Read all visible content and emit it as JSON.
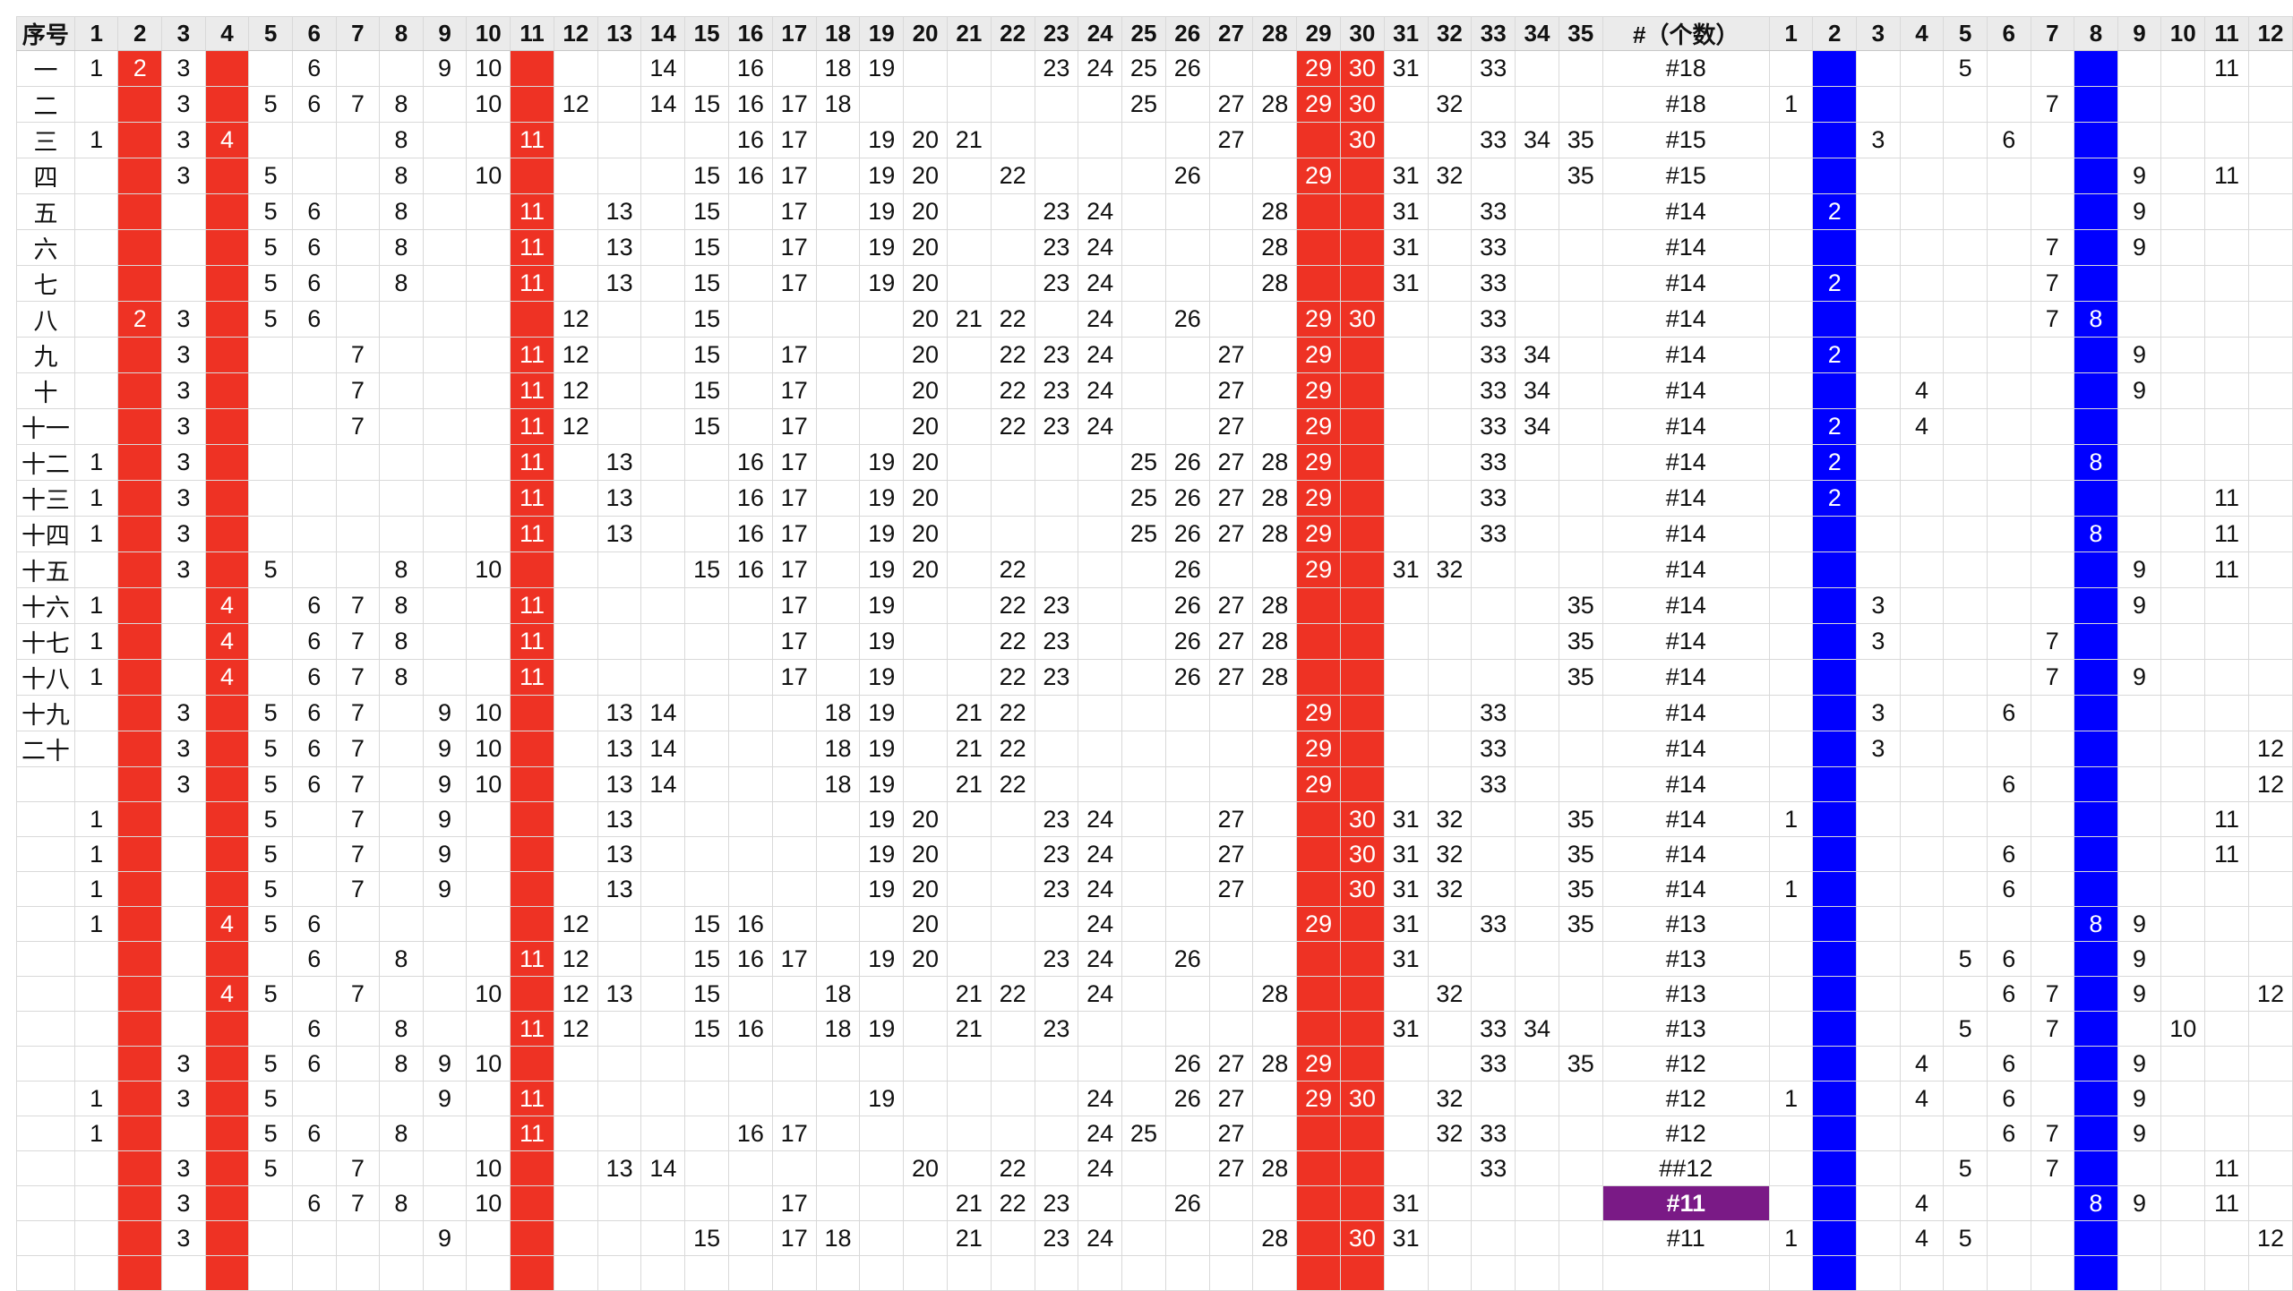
{
  "sheet": {
    "headers": {
      "seq": "序号",
      "red": [
        "1",
        "2",
        "3",
        "4",
        "5",
        "6",
        "7",
        "8",
        "9",
        "10",
        "11",
        "12",
        "13",
        "14",
        "15",
        "16",
        "17",
        "18",
        "19",
        "20",
        "21",
        "22",
        "23",
        "24",
        "25",
        "26",
        "27",
        "28",
        "29",
        "30",
        "31",
        "32",
        "33",
        "34",
        "35"
      ],
      "count": "#（个数）",
      "blue": [
        "1",
        "2",
        "3",
        "4",
        "5",
        "6",
        "7",
        "8",
        "9",
        "10",
        "11",
        "12"
      ]
    },
    "fill_columns": {
      "red": [
        "2",
        "4",
        "11",
        "29",
        "30"
      ],
      "blue": [
        "2",
        "8"
      ]
    },
    "colors": {
      "red_fill": "#ee3224",
      "blue_fill": "#0000ff",
      "count_highlight": "#7a1a86",
      "header_bg": "#ebebeb",
      "grid_line": "#d9d9d9"
    },
    "highlighted_count_row": 32,
    "rows": [
      {
        "seq": "一",
        "red": "1,2,3,6,9,10,14,16,18,19,23,24,25,26,29,30,31,33",
        "count": "#18",
        "blue": "5,11"
      },
      {
        "seq": "二",
        "red": "3,5,6,7,8,10,12,14,15,16,17,18,25,27,28,29,30,32",
        "count": "#18",
        "blue": "1,7"
      },
      {
        "seq": "三",
        "red": "1,3,4,8,11,16,17,19,20,21,27,30,33,34,35",
        "count": "#15",
        "blue": "3,6"
      },
      {
        "seq": "四",
        "red": "3,5,8,10,15,16,17,19,20,22,26,29,31,32,35",
        "count": "#15",
        "blue": "9,11"
      },
      {
        "seq": "五",
        "red": "5,6,8,11,13,15,17,19,20,23,24,28,31,33",
        "count": "#14",
        "blue": "2,9"
      },
      {
        "seq": "六",
        "red": "5,6,8,11,13,15,17,19,20,23,24,28,31,33",
        "count": "#14",
        "blue": "7,9"
      },
      {
        "seq": "七",
        "red": "5,6,8,11,13,15,17,19,20,23,24,28,31,33",
        "count": "#14",
        "blue": "2,7"
      },
      {
        "seq": "八",
        "red": "2,3,5,6,12,15,20,21,22,24,26,29,30,33",
        "count": "#14",
        "blue": "7,8"
      },
      {
        "seq": "九",
        "red": "3,7,11,12,15,17,20,22,23,24,27,29,33,34",
        "count": "#14",
        "blue": "2,9"
      },
      {
        "seq": "十",
        "red": "3,7,11,12,15,17,20,22,23,24,27,29,33,34",
        "count": "#14",
        "blue": "4,9"
      },
      {
        "seq": "十一",
        "red": "3,7,11,12,15,17,20,22,23,24,27,29,33,34",
        "count": "#14",
        "blue": "2,4"
      },
      {
        "seq": "十二",
        "red": "1,3,11,13,16,17,19,20,25,26,27,28,29,33",
        "count": "#14",
        "blue": "2,8"
      },
      {
        "seq": "十三",
        "red": "1,3,11,13,16,17,19,20,25,26,27,28,29,33",
        "count": "#14",
        "blue": "2,11"
      },
      {
        "seq": "十四",
        "red": "1,3,11,13,16,17,19,20,25,26,27,28,29,33",
        "count": "#14",
        "blue": "8,11"
      },
      {
        "seq": "十五",
        "red": "3,5,8,10,15,16,17,19,20,22,26,29,31,32",
        "count": "#14",
        "blue": "9,11"
      },
      {
        "seq": "十六",
        "red": "1,4,6,7,8,11,17,19,22,23,26,27,28,35",
        "count": "#14",
        "blue": "3,9"
      },
      {
        "seq": "十七",
        "red": "1,4,6,7,8,11,17,19,22,23,26,27,28,35",
        "count": "#14",
        "blue": "3,7"
      },
      {
        "seq": "十八",
        "red": "1,4,6,7,8,11,17,19,22,23,26,27,28,35",
        "count": "#14",
        "blue": "7,9"
      },
      {
        "seq": "十九",
        "red": "3,5,6,7,9,10,13,14,18,19,21,22,29,33",
        "count": "#14",
        "blue": "3,6"
      },
      {
        "seq": "二十",
        "red": "3,5,6,7,9,10,13,14,18,19,21,22,29,33",
        "count": "#14",
        "blue": "3,12"
      },
      {
        "seq": "",
        "red": "3,5,6,7,9,10,13,14,18,19,21,22,29,33",
        "count": "#14",
        "blue": "6,12"
      },
      {
        "seq": "",
        "red": "1,5,7,9,13,19,20,23,24,27,30,31,32,35",
        "count": "#14",
        "blue": "1,11"
      },
      {
        "seq": "",
        "red": "1,5,7,9,13,19,20,23,24,27,30,31,32,35",
        "count": "#14",
        "blue": "6,11"
      },
      {
        "seq": "",
        "red": "1,5,7,9,13,19,20,23,24,27,30,31,32,35",
        "count": "#14",
        "blue": "1,6"
      },
      {
        "seq": "",
        "red": "1,4,5,6,12,15,16,20,24,29,31,33,35",
        "count": "#13",
        "blue": "8,9"
      },
      {
        "seq": "",
        "red": "6,8,11,12,15,16,17,19,20,23,24,26,31",
        "count": "#13",
        "blue": "5,6,9"
      },
      {
        "seq": "",
        "red": "4,5,7,10,12,13,15,18,21,22,24,28,32",
        "count": "#13",
        "blue": "6,7,9,12"
      },
      {
        "seq": "",
        "red": "6,8,11,12,15,16,18,19,21,23,31,33,34",
        "count": "#13",
        "blue": "5,7,10"
      },
      {
        "seq": "",
        "red": "3,5,6,8,9,10,26,27,28,29,33,35",
        "count": "#12",
        "blue": "4,6,9"
      },
      {
        "seq": "",
        "red": "1,3,5,9,11,19,24,26,27,29,30,32",
        "count": "#12",
        "blue": "1,4,6,9"
      },
      {
        "seq": "",
        "red": "1,5,6,8,11,16,17,24,25,27,32,33",
        "count": "#12",
        "blue": "6,7,9"
      },
      {
        "seq": "",
        "red": "3,5,7,10,13,14,20,22,24,27,28,33",
        "count": "##12",
        "blue": "5,7,11"
      },
      {
        "seq": "",
        "red": "3,6,7,8,10,17,21,22,23,26,31",
        "count": "#11",
        "blue": "4,8,9,11"
      },
      {
        "seq": "",
        "red": "3,9,15,17,18,21,23,24,28,30,31",
        "count": "#11",
        "blue": "1,4,5,12"
      },
      {
        "seq": "",
        "red": "",
        "count": "",
        "blue": ""
      }
    ]
  }
}
